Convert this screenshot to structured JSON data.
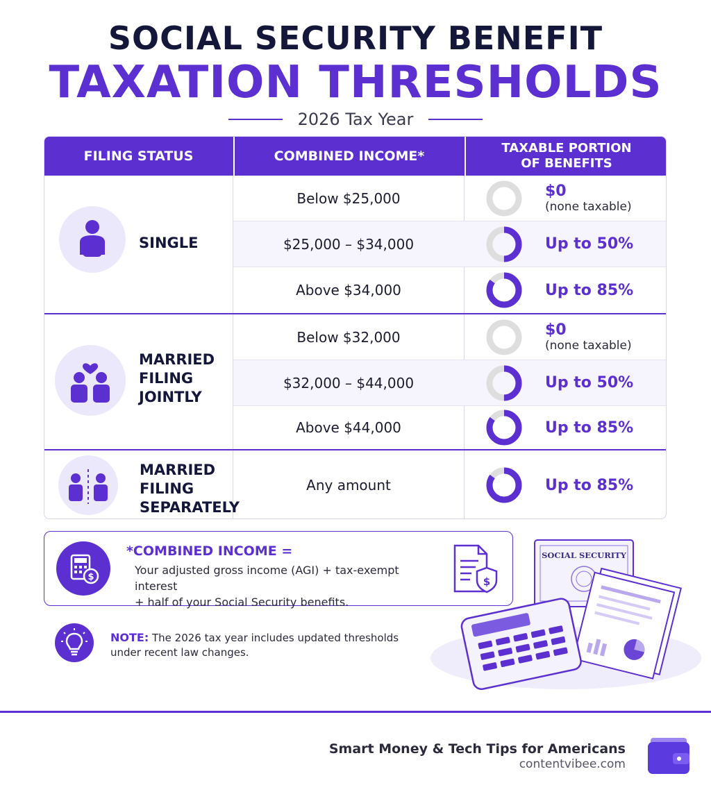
{
  "header": {
    "title_line1": "SOCIAL SECURITY BENEFIT",
    "title_line2": "TAXATION THRESHOLDS",
    "subtitle": "2026 Tax Year"
  },
  "table": {
    "columns": [
      "FILING STATUS",
      "COMBINED INCOME*",
      "TAXABLE PORTION\nOF BENEFITS"
    ],
    "groups": [
      {
        "status": "SINGLE",
        "icon": "single-person-icon",
        "rows": [
          {
            "income": "Below $25,000",
            "portion": "$0",
            "note": "(none taxable)",
            "fraction": 0
          },
          {
            "income": "$25,000 – $34,000",
            "portion": "Up to 50%",
            "note": "",
            "fraction": 0.5
          },
          {
            "income": "Above $34,000",
            "portion": "Up to 85%",
            "note": "",
            "fraction": 0.85
          }
        ]
      },
      {
        "status": "MARRIED\nFILING\nJOINTLY",
        "icon": "couple-heart-icon",
        "rows": [
          {
            "income": "Below $32,000",
            "portion": "$0",
            "note": "(none taxable)",
            "fraction": 0
          },
          {
            "income": "$32,000 – $44,000",
            "portion": "Up to 50%",
            "note": "",
            "fraction": 0.5
          },
          {
            "income": "Above $44,000",
            "portion": "Up to 85%",
            "note": "",
            "fraction": 0.85
          }
        ]
      },
      {
        "status": "MARRIED\nFILING\nSEPARATELY",
        "icon": "separated-couple-icon",
        "rows": [
          {
            "income": "Any amount",
            "portion": "Up to 85%",
            "note": "",
            "fraction": 0.85
          }
        ]
      }
    ]
  },
  "combined_income": {
    "title": "*COMBINED INCOME =",
    "line1": "Your adjusted gross income (AGI) + tax-exempt interest",
    "line2": "+ half of your Social Security benefits."
  },
  "note": {
    "label": "NOTE:",
    "text": "The 2026 tax year includes updated thresholds under recent law changes."
  },
  "illustration": {
    "card_label": "SOCIAL SECURITY"
  },
  "footer": {
    "tagline": "Smart Money & Tech Tips for Americans",
    "url": "contentvibee.com"
  },
  "colors": {
    "accent": "#5b2fd0",
    "dark": "#15173a",
    "donut_track": "#dedede"
  }
}
